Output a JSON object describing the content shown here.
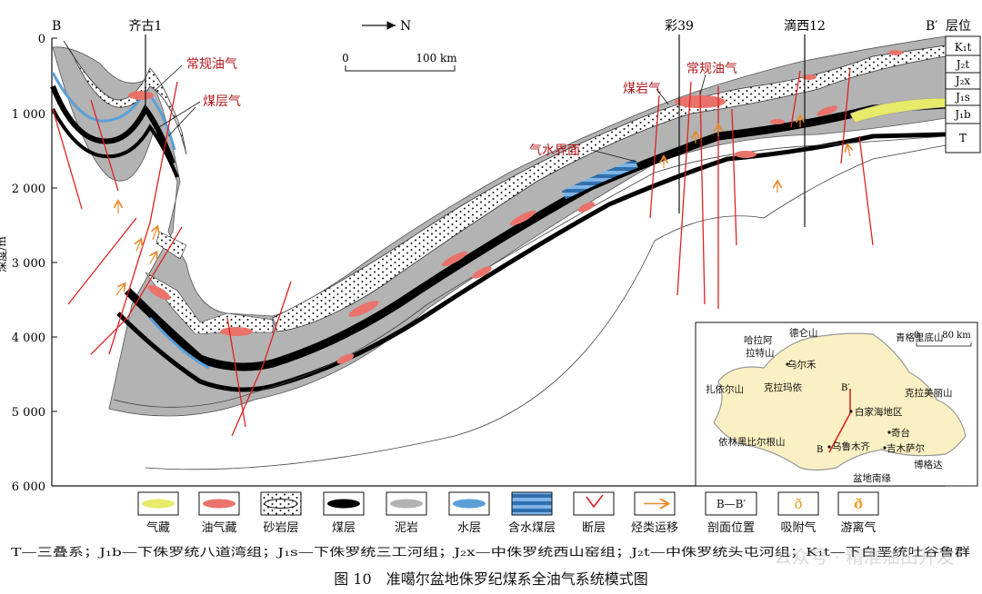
{
  "section": {
    "start": "B",
    "end": "B′",
    "wells": [
      "齐古1",
      "彩39",
      "滴西12"
    ],
    "north_arrow": "N",
    "scale": {
      "zero": "0",
      "value": "100 km"
    },
    "depth_ticks": [
      "0",
      "1 000",
      "2 000",
      "3 000",
      "4 000",
      "5 000",
      "6 000"
    ],
    "depth_axis_label": "深度/m"
  },
  "strata_column": {
    "title": "层位",
    "rows": [
      "K₁t",
      "J₂t",
      "J₂x",
      "J₁s",
      "J₁b",
      "T"
    ]
  },
  "annotations": {
    "conventional_oil_gas_1": "常规油气",
    "coalbed_gas": "煤层气",
    "coal_rock_gas": "煤岩气",
    "conventional_oil_gas_2": "常规油气",
    "gas_water_interface": "气水界面"
  },
  "inset_map": {
    "scale": {
      "zero": "0",
      "value": "80 km"
    },
    "places": {
      "harala": "哈拉阿",
      "latesh": "拉特山",
      "delun": "德仑山",
      "wuerhe": "乌尔禾",
      "kelamayi": "克拉玛依",
      "zhayier_shan": "扎依尔山",
      "baijiahai": "白家海地区",
      "qitai": "奇台",
      "wulumuqi": "乌鲁木齐",
      "jimusaer": "吉木萨尔",
      "pendi_nanyuan": "盆地南缘",
      "yilinhebi": "依林黑比尔根山",
      "bogeda": "博格达",
      "qinggeli": "青格里底山",
      "kelamaili": "克拉美丽山"
    },
    "profile_start": "B",
    "profile_end": "B′"
  },
  "legend": {
    "items": [
      {
        "key": "gas",
        "label": "气藏",
        "color": "#e8ea6a"
      },
      {
        "key": "oil",
        "label": "油气藏",
        "color": "#e9736b"
      },
      {
        "key": "sand",
        "label": "砂岩层"
      },
      {
        "key": "coal",
        "label": "煤层",
        "color": "#000000"
      },
      {
        "key": "mud",
        "label": "泥岩",
        "color": "#b3b3b3"
      },
      {
        "key": "water",
        "label": "水层",
        "color": "#5b9fd8"
      },
      {
        "key": "watercoal",
        "label": "含水煤层"
      },
      {
        "key": "fault",
        "label": "断层",
        "color": "#d22"
      },
      {
        "key": "migration",
        "label": "烃类运移",
        "color": "#e88a2c"
      },
      {
        "key": "profile",
        "label": "剖面位置",
        "symbol": "B—B′"
      },
      {
        "key": "adsorbed",
        "label": "吸附气",
        "color": "#e9a030"
      },
      {
        "key": "free",
        "label": "游离气",
        "color": "#e9a030"
      }
    ]
  },
  "abbreviations": "T—三叠系；J₁b—下侏罗统八道湾组；J₁s—下侏罗统三工河组；J₂x—中侏罗统西山窑组；J₂t—中侏罗统头屯河组；K₁t—下白垩统吐谷鲁群",
  "caption": "图 10　准噶尔盆地侏罗纪煤系全油气系统模式图",
  "watermark": "公众号 · 精准油田开发"
}
